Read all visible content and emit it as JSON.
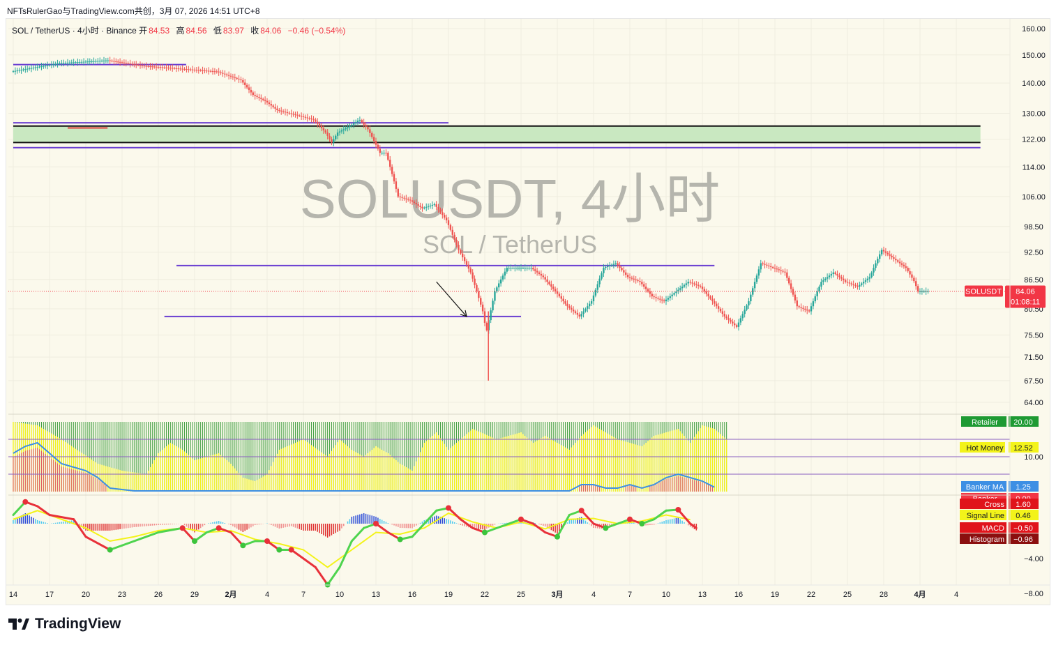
{
  "header_text": "NFTsRulerGao与TradingView.com共创，3月 07, 2026 14:51 UTC+8",
  "legend": {
    "symbol": "SOL / TetherUS · 4小时 · Binance",
    "open_label": "开",
    "open": "84.53",
    "high_label": "高",
    "high": "84.56",
    "low_label": "低",
    "low": "83.97",
    "close_label": "收",
    "close": "84.06",
    "change": "−0.46 (−0.54%)"
  },
  "watermark": {
    "title": "SOLUSDT, 4小时",
    "subtitle": "SOL / TetherUS"
  },
  "brand": "TradingView",
  "colors": {
    "background": "#fbf9ec",
    "up": "#26a69a",
    "down": "#ef5350",
    "level_line": "#6a3fd1",
    "zone_fill": "#c9e8c1",
    "price_tag": "#f23645",
    "grid": "#efeddf"
  },
  "chart_data": [
    {
      "type": "candlestick",
      "symbol": "SOLUSDT",
      "timeframe": "4小时",
      "ylim": [
        64,
        160
      ],
      "log_scale": true,
      "grid": true,
      "y_ticks": [
        "160.00",
        "150.00",
        "140.00",
        "130.00",
        "122.00",
        "114.00",
        "106.00",
        "98.50",
        "92.50",
        "86.50",
        "80.50",
        "75.50",
        "71.50",
        "67.50",
        "64.00"
      ],
      "x_ticks": [
        "14",
        "17",
        "20",
        "23",
        "26",
        "29",
        "2月",
        "4",
        "7",
        "10",
        "13",
        "16",
        "19",
        "22",
        "25",
        "3月",
        "4",
        "7",
        "10",
        "13",
        "16",
        "19",
        "22",
        "25",
        "28",
        "4月",
        "4"
      ],
      "price_path": [
        [
          0,
          144
        ],
        [
          4,
          147
        ],
        [
          8,
          148
        ],
        [
          11,
          146
        ],
        [
          14,
          145
        ],
        [
          17,
          144
        ],
        [
          19,
          141
        ],
        [
          20,
          136
        ],
        [
          21,
          134
        ],
        [
          22,
          131
        ],
        [
          23,
          130
        ],
        [
          24,
          129
        ],
        [
          25,
          128
        ],
        [
          26,
          124
        ],
        [
          26.5,
          121
        ],
        [
          27,
          124
        ],
        [
          28,
          126
        ],
        [
          28.8,
          128
        ],
        [
          29.5,
          125
        ],
        [
          30.5,
          118
        ],
        [
          31,
          118
        ],
        [
          31.5,
          112
        ],
        [
          32,
          106
        ],
        [
          33,
          105
        ],
        [
          34,
          103
        ],
        [
          35,
          104
        ],
        [
          36,
          100
        ],
        [
          37,
          93
        ],
        [
          38,
          88
        ],
        [
          39,
          80
        ],
        [
          39.3,
          76
        ],
        [
          40,
          84
        ],
        [
          41,
          89
        ],
        [
          42,
          89
        ],
        [
          43,
          89
        ],
        [
          44,
          87
        ],
        [
          45,
          84
        ],
        [
          46,
          81
        ],
        [
          47,
          79
        ],
        [
          48,
          82
        ],
        [
          49,
          89
        ],
        [
          50,
          90
        ],
        [
          51,
          87
        ],
        [
          52,
          86
        ],
        [
          53,
          83
        ],
        [
          54,
          82
        ],
        [
          55,
          84
        ],
        [
          56,
          86
        ],
        [
          57,
          85
        ],
        [
          58,
          82
        ],
        [
          59,
          79
        ],
        [
          60,
          77
        ],
        [
          61,
          82
        ],
        [
          62,
          90
        ],
        [
          63,
          89
        ],
        [
          64,
          88
        ],
        [
          65,
          81
        ],
        [
          66,
          80
        ],
        [
          67,
          86
        ],
        [
          68,
          88
        ],
        [
          69,
          86
        ],
        [
          70,
          85
        ],
        [
          71,
          87
        ],
        [
          72,
          93
        ],
        [
          73,
          91
        ],
        [
          74,
          89
        ],
        [
          74.7,
          86
        ],
        [
          75,
          84
        ],
        [
          75.7,
          84.06
        ]
      ],
      "wicks": [
        {
          "x": 39.3,
          "low": 67.5,
          "high": 80
        }
      ],
      "horizontal_levels": [
        {
          "from": 0,
          "to": 14.3,
          "price": 146.5
        },
        {
          "from": 0,
          "to": 36,
          "price": 127
        },
        {
          "from": 0,
          "to": 80,
          "price": 119.5
        },
        {
          "from": 13.5,
          "to": 58,
          "price": 89.5
        },
        {
          "from": 12.5,
          "to": 42,
          "price": 79
        },
        {
          "from": 4.5,
          "to": 7.8,
          "price": 125.4
        }
      ],
      "zone": {
        "top": 126,
        "bottom": 121,
        "from": 0,
        "to": 80
      },
      "arrow": {
        "from": [
          35,
          86
        ],
        "to": [
          37.5,
          79
        ]
      },
      "last_price": {
        "label": "SOLUSDT",
        "value": "84.06",
        "countdown": "01:08:11",
        "prev_tick": "80.50"
      }
    },
    {
      "type": "bar",
      "name": "Retailer / Hot Money / Banker",
      "ylim": [
        0,
        20
      ],
      "visible_tick": "10.00",
      "labels": [
        {
          "name": "Retailer",
          "value": "20.00",
          "color": "#1e9a33"
        },
        {
          "name": "Hot Money",
          "value": "12.52",
          "color": "#f3f31a"
        },
        {
          "name": "Banker MA",
          "value": "1.25",
          "color": "#3d8fe4"
        },
        {
          "name": "Banker",
          "value": "0.00",
          "color": "#f23645"
        }
      ],
      "hot_money_path": [
        [
          0,
          20
        ],
        [
          2,
          19
        ],
        [
          4,
          15
        ],
        [
          7,
          8
        ],
        [
          9,
          6
        ],
        [
          11,
          5
        ],
        [
          12,
          11
        ],
        [
          13,
          14
        ],
        [
          14,
          12
        ],
        [
          15,
          9
        ],
        [
          16,
          10
        ],
        [
          17,
          11
        ],
        [
          18,
          8
        ],
        [
          19,
          4
        ],
        [
          20,
          3
        ],
        [
          21,
          5
        ],
        [
          22,
          12
        ],
        [
          24,
          15
        ],
        [
          26,
          10
        ],
        [
          27,
          15
        ],
        [
          28,
          12
        ],
        [
          29,
          10
        ],
        [
          30,
          13
        ],
        [
          31,
          11
        ],
        [
          32,
          8
        ],
        [
          33,
          6
        ],
        [
          34,
          14
        ],
        [
          35,
          17
        ],
        [
          36,
          12
        ],
        [
          38,
          18
        ],
        [
          40,
          15
        ],
        [
          42,
          17
        ],
        [
          43,
          14
        ],
        [
          44,
          16
        ],
        [
          46,
          12
        ],
        [
          47,
          16
        ],
        [
          48,
          19
        ],
        [
          50,
          15
        ],
        [
          52,
          13
        ],
        [
          53,
          16
        ],
        [
          55,
          18
        ],
        [
          56,
          14
        ],
        [
          57,
          19
        ],
        [
          58,
          18
        ],
        [
          59,
          15
        ]
      ],
      "banker_ma_path": [
        [
          0,
          11
        ],
        [
          1,
          13
        ],
        [
          2,
          14
        ],
        [
          3,
          11
        ],
        [
          4,
          8
        ],
        [
          5,
          7
        ],
        [
          6,
          6
        ],
        [
          7,
          4
        ],
        [
          8,
          1
        ],
        [
          10,
          0.2
        ],
        [
          46,
          0.2
        ],
        [
          47,
          2
        ],
        [
          48,
          2
        ],
        [
          49,
          1
        ],
        [
          50,
          1
        ],
        [
          51,
          2
        ],
        [
          52,
          1
        ],
        [
          53,
          2
        ],
        [
          54,
          4
        ],
        [
          55,
          5
        ],
        [
          56,
          4
        ],
        [
          57,
          3
        ],
        [
          58,
          1.25
        ]
      ],
      "levels": [
        15,
        10,
        5
      ]
    },
    {
      "type": "line",
      "name": "MACD",
      "ylim": [
        -8,
        4
      ],
      "y_ticks": [
        "-4.00",
        "-8.00"
      ],
      "labels": [
        {
          "name": "Cross",
          "value": "1.60",
          "color": "#e0141b"
        },
        {
          "name": "Signal Line",
          "value": "0.46",
          "color": "#f3f31a"
        },
        {
          "name": "MACD",
          "value": "−0.50",
          "color": "#e0141b"
        },
        {
          "name": "Histogram",
          "value": "−0.96",
          "color": "#8b0f0f"
        }
      ],
      "macd_path": [
        [
          0,
          1
        ],
        [
          1,
          2.5
        ],
        [
          2,
          2
        ],
        [
          3,
          1
        ],
        [
          5,
          0.5
        ],
        [
          6,
          -1.5
        ],
        [
          8,
          -3
        ],
        [
          9,
          -2.5
        ],
        [
          10,
          -2
        ],
        [
          12,
          -1
        ],
        [
          14,
          -0.5
        ],
        [
          15,
          -2
        ],
        [
          16,
          -1
        ],
        [
          17,
          -0.5
        ],
        [
          18,
          -1
        ],
        [
          19,
          -2.5
        ],
        [
          20,
          -2
        ],
        [
          21,
          -2
        ],
        [
          22,
          -3
        ],
        [
          23,
          -3
        ],
        [
          24,
          -4
        ],
        [
          25,
          -5
        ],
        [
          26,
          -7
        ],
        [
          27,
          -5
        ],
        [
          28,
          -2
        ],
        [
          29,
          -0.5
        ],
        [
          30,
          0
        ],
        [
          31,
          -1
        ],
        [
          32,
          -1.8
        ],
        [
          33,
          -1.5
        ],
        [
          34,
          0
        ],
        [
          35,
          1.5
        ],
        [
          36,
          1.8
        ],
        [
          37,
          0.5
        ],
        [
          38,
          -0.5
        ],
        [
          39,
          -1
        ],
        [
          40,
          -0.5
        ],
        [
          41,
          0
        ],
        [
          42,
          0.5
        ],
        [
          43,
          0
        ],
        [
          44,
          -1
        ],
        [
          45,
          -1.5
        ],
        [
          46,
          1
        ],
        [
          47,
          1.5
        ],
        [
          48,
          0
        ],
        [
          49,
          -0.5
        ],
        [
          50,
          0
        ],
        [
          51,
          0.5
        ],
        [
          52,
          0
        ],
        [
          53,
          0.5
        ],
        [
          54,
          1.5
        ],
        [
          55,
          1.6
        ],
        [
          56,
          0
        ],
        [
          56.5,
          -0.5
        ]
      ],
      "signal_path": [
        [
          0,
          0.5
        ],
        [
          2,
          1.5
        ],
        [
          4,
          0.5
        ],
        [
          6,
          -0.5
        ],
        [
          8,
          -2
        ],
        [
          10,
          -1.5
        ],
        [
          12,
          -0.8
        ],
        [
          14,
          -0.5
        ],
        [
          16,
          -1
        ],
        [
          18,
          -0.8
        ],
        [
          20,
          -1.8
        ],
        [
          22,
          -2.3
        ],
        [
          24,
          -3
        ],
        [
          26,
          -5
        ],
        [
          28,
          -3
        ],
        [
          30,
          -1
        ],
        [
          32,
          -1.2
        ],
        [
          34,
          -0.5
        ],
        [
          36,
          1.2
        ],
        [
          38,
          0.2
        ],
        [
          40,
          -0.5
        ],
        [
          42,
          0.2
        ],
        [
          44,
          -0.6
        ],
        [
          46,
          0.5
        ],
        [
          48,
          0.6
        ],
        [
          50,
          0
        ],
        [
          52,
          0.3
        ],
        [
          54,
          1
        ],
        [
          56,
          0.46
        ]
      ]
    }
  ]
}
